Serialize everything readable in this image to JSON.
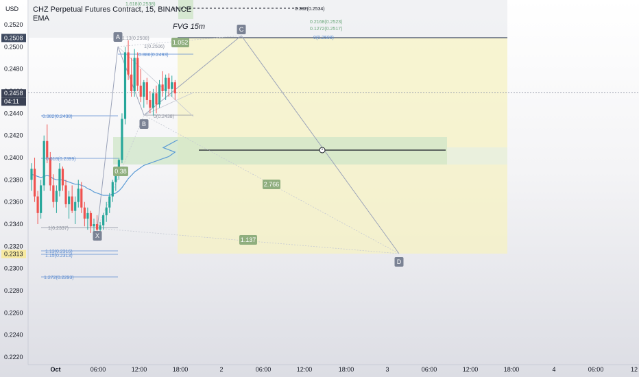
{
  "chart_header": {
    "title": "CHZ Perpetual Futures Contract, 15, BINANCE",
    "indicator": "EMA",
    "axis_currency": "USD"
  },
  "colors": {
    "candle_up": "#26a69a",
    "candle_down": "#ef5350",
    "ema": "#5b9bd5",
    "fib_blue": "#5b8bd0",
    "fib_green": "#6aa77a",
    "pattern_line": "#9aa2b8",
    "pattern_fill": "#f5f1c3",
    "fvg_fill": "#cfe5c8",
    "label_bg": "#7a8294",
    "ratio_bg": "#8fae7e"
  },
  "price_axis": {
    "ticks": [
      "0.2520",
      "0.2500",
      "0.2480",
      "0.2460",
      "0.2440",
      "0.2420",
      "0.2400",
      "0.2380",
      "0.2360",
      "0.2340",
      "0.2320",
      "0.2300",
      "0.2280",
      "0.2260",
      "0.2240",
      "0.2220"
    ],
    "current_price": "0.2458",
    "countdown": "04:11",
    "marked_high": "0.2508",
    "marked_low": "0.2313"
  },
  "time_axis": {
    "ticks": [
      "Oct",
      "06:00",
      "12:00",
      "18:00",
      "2",
      "06:00",
      "12:00",
      "18:00",
      "3",
      "06:00",
      "12:00",
      "18:00",
      "4",
      "06:00",
      "12"
    ]
  },
  "annotations": {
    "fvg_label": "FVG 15m",
    "points": [
      "A",
      "B",
      "C",
      "D",
      "X"
    ],
    "ratios": [
      "1.052",
      "0.38",
      "2.766",
      "1.137"
    ],
    "fib_levels": [
      "1.618(0.2538)",
      "0.382(0.2534)",
      "0.2168(0.2523)",
      "0.1272(0.2517)",
      "0(0.2508)",
      "1.13(0.2508)",
      "1(0.2506)",
      "0.886(0.2493)",
      "0.382(0.2438)",
      "0(0.2438)",
      "0.618(0.2399)",
      "1(0.2337)",
      "1.13(0.2316)",
      "1.15(0.2313)",
      "1.272(0.2293)"
    ],
    "alarm_icon": "alarm-clock-icon"
  },
  "candles": [
    [
      0.238,
      0.2395,
      0.237,
      0.239
    ],
    [
      0.239,
      0.24,
      0.236,
      0.2365
    ],
    [
      0.2365,
      0.237,
      0.234,
      0.235
    ],
    [
      0.235,
      0.238,
      0.2345,
      0.2375
    ],
    [
      0.2375,
      0.242,
      0.237,
      0.2415
    ],
    [
      0.2415,
      0.243,
      0.2395,
      0.24
    ],
    [
      0.24,
      0.2405,
      0.237,
      0.2375
    ],
    [
      0.2375,
      0.2385,
      0.2355,
      0.236
    ],
    [
      0.236,
      0.2375,
      0.235,
      0.237
    ],
    [
      0.237,
      0.2395,
      0.2365,
      0.239
    ],
    [
      0.239,
      0.2392,
      0.237,
      0.2375
    ],
    [
      0.2375,
      0.238,
      0.2355,
      0.2358
    ],
    [
      0.2358,
      0.237,
      0.2345,
      0.2365
    ],
    [
      0.2365,
      0.2375,
      0.235,
      0.2352
    ],
    [
      0.2352,
      0.2365,
      0.234,
      0.236
    ],
    [
      0.236,
      0.238,
      0.2355,
      0.2372
    ],
    [
      0.2372,
      0.2378,
      0.235,
      0.2355
    ],
    [
      0.2355,
      0.236,
      0.2338,
      0.2345
    ],
    [
      0.2345,
      0.2355,
      0.2335,
      0.235
    ],
    [
      0.235,
      0.2352,
      0.2332,
      0.2338
    ],
    [
      0.2338,
      0.2345,
      0.2328,
      0.234
    ],
    [
      0.234,
      0.2348,
      0.2325,
      0.2335
    ],
    [
      0.2335,
      0.2342,
      0.233,
      0.2339
    ],
    [
      0.2339,
      0.235,
      0.2335,
      0.2348
    ],
    [
      0.2348,
      0.236,
      0.2342,
      0.2355
    ],
    [
      0.2355,
      0.2368,
      0.235,
      0.2365
    ],
    [
      0.2365,
      0.238,
      0.236,
      0.2378
    ],
    [
      0.2378,
      0.239,
      0.237,
      0.2385
    ],
    [
      0.2385,
      0.24,
      0.238,
      0.2398
    ],
    [
      0.2398,
      0.244,
      0.2395,
      0.2435
    ],
    [
      0.2435,
      0.25,
      0.243,
      0.2495
    ],
    [
      0.2495,
      0.2506,
      0.247,
      0.2475
    ],
    [
      0.2475,
      0.249,
      0.2455,
      0.246
    ],
    [
      0.246,
      0.2498,
      0.2455,
      0.249
    ],
    [
      0.249,
      0.2495,
      0.246,
      0.2465
    ],
    [
      0.2465,
      0.248,
      0.245,
      0.2455
    ],
    [
      0.2455,
      0.247,
      0.2445,
      0.2468
    ],
    [
      0.2468,
      0.2472,
      0.2448,
      0.2452
    ],
    [
      0.2452,
      0.246,
      0.244,
      0.2445
    ],
    [
      0.2445,
      0.2462,
      0.2438,
      0.2458
    ],
    [
      0.2458,
      0.2465,
      0.244,
      0.2448
    ],
    [
      0.2448,
      0.247,
      0.2445,
      0.2466
    ],
    [
      0.2466,
      0.2478,
      0.2455,
      0.246
    ],
    [
      0.246,
      0.2475,
      0.2452,
      0.2472
    ],
    [
      0.2472,
      0.2476,
      0.2455,
      0.2462
    ],
    [
      0.2462,
      0.2474,
      0.2455,
      0.2468
    ],
    [
      0.2468,
      0.247,
      0.2452,
      0.2458
    ]
  ],
  "ema": [
    0.2385,
    0.2384,
    0.2383,
    0.2382,
    0.2383,
    0.2384,
    0.2383,
    0.2381,
    0.238,
    0.238,
    0.238,
    0.2379,
    0.2378,
    0.2377,
    0.2376,
    0.2376,
    0.2375,
    0.2374,
    0.2372,
    0.2371,
    0.2369,
    0.2368,
    0.2367,
    0.2366,
    0.2366,
    0.2366,
    0.2367,
    0.2368,
    0.237,
    0.2373,
    0.2377,
    0.2381,
    0.2384,
    0.2387,
    0.2389,
    0.2391,
    0.2393,
    0.2394,
    0.2395,
    0.2396,
    0.2397,
    0.2398,
    0.2399,
    0.24,
    0.2401,
    0.2403,
    0.2405
  ]
}
